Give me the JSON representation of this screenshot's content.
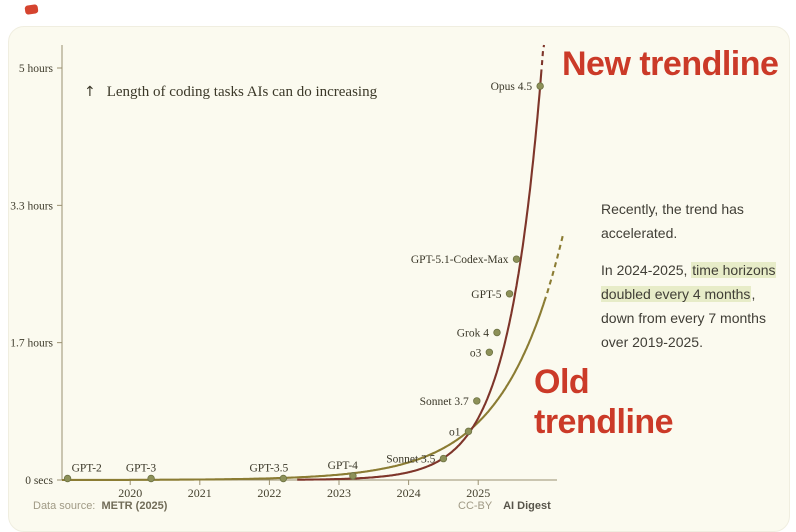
{
  "page": {
    "background": "#ffffff",
    "card_background": "#fbfaef"
  },
  "branding": {
    "red_mark_color": "#d5442f"
  },
  "annotation_note": {
    "arrow": "↑",
    "text": "Length of coding tasks AIs can do increasing"
  },
  "trendline_labels": {
    "new": "New trendline",
    "old": "Old trendline",
    "color": "#cb3a28"
  },
  "side_text": {
    "para1": "Recently, the trend has accelerated.",
    "para2_prefix": "In 2024-2025, ",
    "para2_highlight": "time horizons doubled every 4 months",
    "para2_suffix": ", down from every 7 months over 2019-2025.",
    "highlight_color": "#e7ecc8"
  },
  "footer": {
    "source_label": "Data source:",
    "source_value": "METR (2025)",
    "license": "CC-BY",
    "brand": "AI Digest"
  },
  "chart_data": {
    "type": "scatter",
    "title": "Length of coding tasks AIs can do increasing",
    "x_axis": {
      "min": 2019.0,
      "max": 2026.3,
      "ticks": [
        2020,
        2021,
        2022,
        2023,
        2024,
        2025
      ]
    },
    "y_axis": {
      "min": 0,
      "max": 5.3,
      "unit": "hours",
      "ticks": [
        {
          "label": "0 secs",
          "hours": 0
        },
        {
          "label": "1.7 hours",
          "hours": 1.667
        },
        {
          "label": "3.3 hours",
          "hours": 3.333
        },
        {
          "label": "5 hours",
          "hours": 5
        }
      ]
    },
    "point_color": "#8d9158",
    "point_edge_color": "#6e7344",
    "axis_color": "#9a9071",
    "label_color": "#3a3728",
    "points": [
      {
        "label": "GPT-2",
        "year": 2019.1,
        "hours": 0.002,
        "anchor": "above-start"
      },
      {
        "label": "GPT-3",
        "year": 2020.3,
        "hours": 0.003,
        "anchor": "above-end"
      },
      {
        "label": "GPT-3.5",
        "year": 2022.2,
        "hours": 0.01,
        "anchor": "above-end"
      },
      {
        "label": "GPT-4",
        "year": 2023.2,
        "hours": 0.05,
        "anchor": "above-end"
      },
      {
        "label": "Sonnet 3.5",
        "year": 2024.5,
        "hours": 0.26,
        "anchor": "left"
      },
      {
        "label": "o1",
        "year": 2024.86,
        "hours": 0.59,
        "anchor": "left"
      },
      {
        "label": "Sonnet 3.7",
        "year": 2024.98,
        "hours": 0.96,
        "anchor": "left"
      },
      {
        "label": "o3",
        "year": 2025.16,
        "hours": 1.55,
        "anchor": "left"
      },
      {
        "label": "Grok 4",
        "year": 2025.27,
        "hours": 1.79,
        "anchor": "left"
      },
      {
        "label": "GPT-5",
        "year": 2025.45,
        "hours": 2.26,
        "anchor": "left"
      },
      {
        "label": "GPT-5.1-Codex-Max",
        "year": 2025.55,
        "hours": 2.68,
        "anchor": "left"
      },
      {
        "label": "Opus 4.5",
        "year": 2025.89,
        "hours": 4.78,
        "anchor": "left"
      }
    ],
    "trendlines": [
      {
        "name": "old",
        "color": "#8b7c33",
        "doubling_months": 7,
        "ref_year": 2025.0,
        "ref_hours": 0.7,
        "start_year": 2019.02,
        "solid_end_year": 2025.95,
        "dash_end_year": 2026.22
      },
      {
        "name": "new",
        "color": "#7e352a",
        "doubling_months": 4,
        "ref_year": 2025.89,
        "ref_hours": 4.78,
        "start_year": 2022.4,
        "solid_end_year": 2025.915,
        "dash_end_year": 2026.0
      }
    ]
  }
}
